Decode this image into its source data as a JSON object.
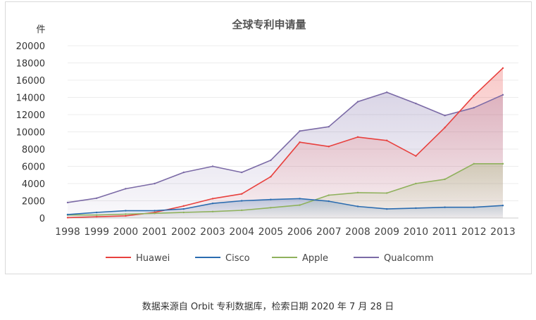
{
  "chart_data": {
    "type": "area",
    "title": "全球专利申请量",
    "ylabel": "件",
    "xlabel": "",
    "x": [
      "1998",
      "1999",
      "2000",
      "2001",
      "2002",
      "2003",
      "2004",
      "2005",
      "2006",
      "2007",
      "2008",
      "2009",
      "2010",
      "2011",
      "2012",
      "2013"
    ],
    "ylim": [
      0,
      20000
    ],
    "yticks": [
      0,
      2000,
      4000,
      6000,
      8000,
      10000,
      12000,
      14000,
      16000,
      18000,
      20000
    ],
    "grid": "horizontal",
    "legend": "bottom",
    "series": [
      {
        "name": "Huawei",
        "color": "#e8413e",
        "values": [
          50,
          150,
          250,
          650,
          1400,
          2250,
          2800,
          4800,
          8800,
          8300,
          9400,
          9000,
          7200,
          10500,
          14200,
          17400
        ]
      },
      {
        "name": "Cisco",
        "color": "#2b6cb0",
        "values": [
          400,
          650,
          850,
          850,
          1050,
          1700,
          2000,
          2150,
          2250,
          1950,
          1350,
          1050,
          1150,
          1250,
          1250,
          1450
        ]
      },
      {
        "name": "Apple",
        "color": "#8fb15c",
        "values": [
          350,
          350,
          450,
          550,
          650,
          750,
          900,
          1200,
          1500,
          2650,
          2950,
          2900,
          4000,
          4500,
          6300,
          6300
        ]
      },
      {
        "name": "Qualcomm",
        "color": "#7b6aa6",
        "values": [
          1800,
          2300,
          3400,
          4000,
          5300,
          6000,
          5300,
          6700,
          10100,
          10600,
          13500,
          14600,
          13300,
          11900,
          12800,
          14300
        ]
      }
    ]
  },
  "source_note": "数据来源自 Orbit 专利数据库，检索日期 2020 年 7 月 28 日"
}
